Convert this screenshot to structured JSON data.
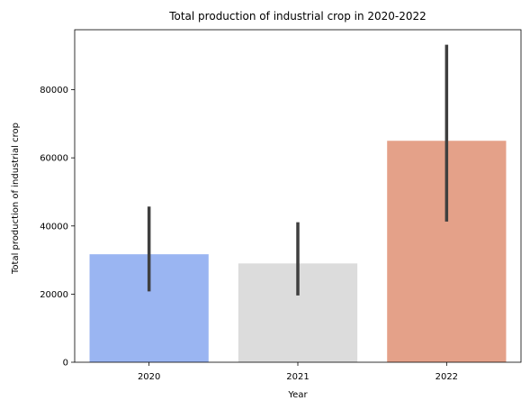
{
  "chart_data": {
    "type": "bar",
    "title": "Total production of industrial crop in 2020-2022",
    "xlabel": "Year",
    "ylabel": "Total production of industrial crop",
    "categories": [
      "2020",
      "2021",
      "2022"
    ],
    "values": [
      31700,
      29000,
      65000
    ],
    "error_low": [
      20800,
      19600,
      41300
    ],
    "error_high": [
      45700,
      41100,
      93200
    ],
    "colors": [
      "#9ab5f2",
      "#dcdcdc",
      "#e4a189"
    ],
    "error_color": "#3f3f3f",
    "ylim": [
      0,
      97600
    ],
    "yticks": [
      0,
      20000,
      40000,
      60000,
      80000
    ],
    "ytick_labels": [
      "0",
      "20000",
      "40000",
      "60000",
      "80000"
    ],
    "grid": false,
    "legend": false
  }
}
